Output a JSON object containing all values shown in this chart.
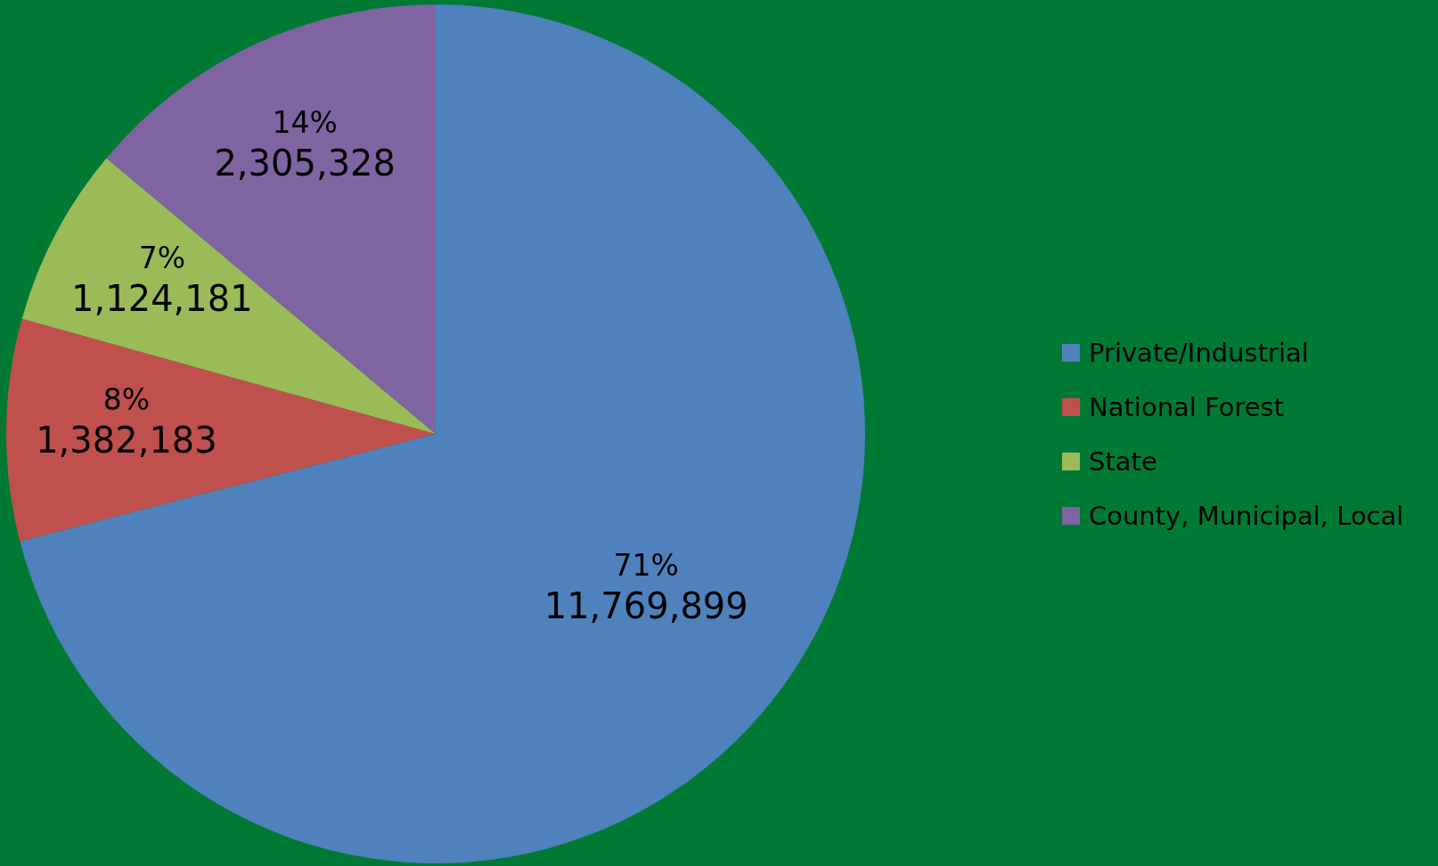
{
  "chart_data": {
    "type": "pie",
    "categories": [
      "Private/Industrial",
      "National Forest",
      "State",
      "County, Municipal, Local"
    ],
    "values": [
      11769899,
      1382183,
      1124181,
      2305328
    ],
    "colors": [
      "#4f81bd",
      "#c0504d",
      "#9bbb59",
      "#8064a2"
    ],
    "value_labels": [
      "71%\n11,769,899",
      "8%\n1,382,183",
      "7%\n1,124,181",
      "14%\n2,305,328"
    ],
    "legend": "right"
  }
}
